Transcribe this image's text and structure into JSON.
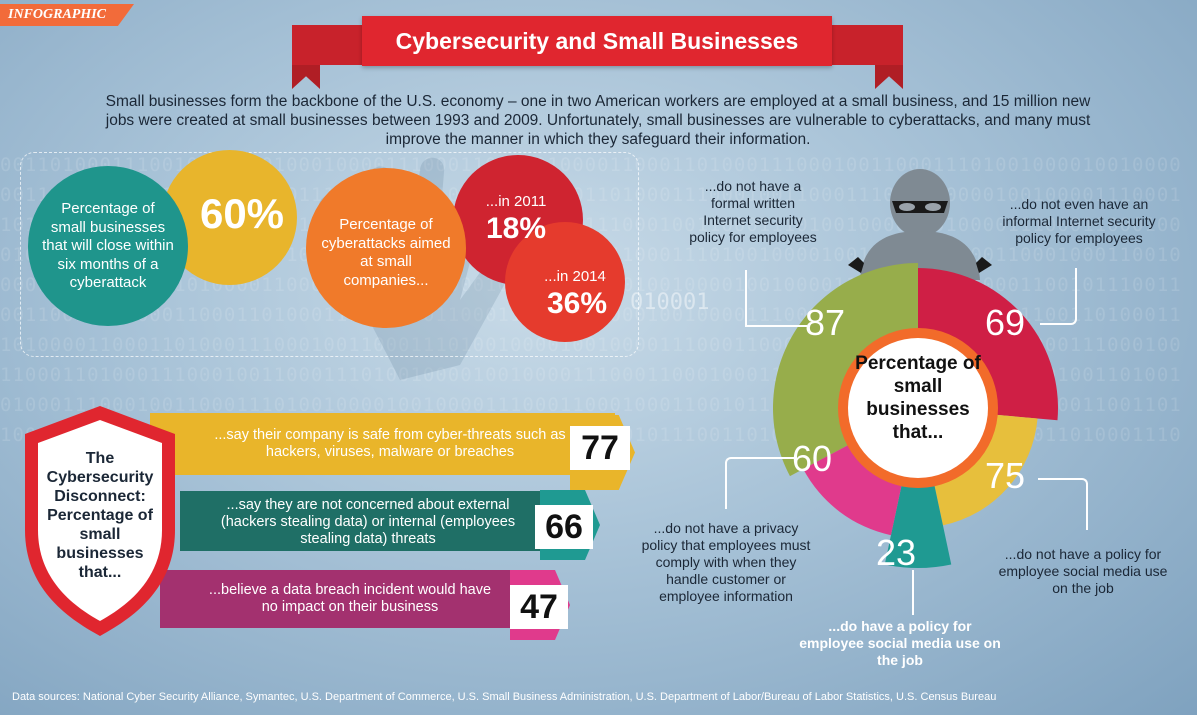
{
  "badge": "INFOGRAPHIC",
  "title": "Cybersecurity and Small Businesses",
  "intro": "Small businesses form the backbone of the U.S. economy – one in two American workers are employed at a small business, and 15 million new jobs were created at small businesses between 1993 and 2009. Unfortunately, small businesses are vulnerable to cyberattacks, and many must improve the manner in which they safeguard their information.",
  "binary_text": "0011010001110010100110100010000111000110011010000110001101000111000100110001110100100001001000011100011000100011001011100110100011100010011010011",
  "stat1": {
    "label": "Percentage of small businesses that will close within six months of a cyberattack",
    "value": "60%"
  },
  "stat2": {
    "label": "Percentage of cyberattacks aimed at small companies...",
    "y2011_label": "...in 2011",
    "y2011_value": "18%",
    "y2014_label": "...in 2014",
    "y2014_value": "36%"
  },
  "disconnect": {
    "shield_label": "The Cybersecurity Disconnect: Percentage of small businesses that...",
    "bars": [
      {
        "text": "...say their company is safe from cyber-threats such as hackers, viruses, malware or breaches",
        "value": "77",
        "color": "#e9b52a"
      },
      {
        "text": "...say they are not concerned about external (hackers stealing data) or internal (employees stealing data) threats",
        "value": "66",
        "color": "#1f6f66"
      },
      {
        "text": "...believe a data breach incident would have no impact on their business",
        "value": "47",
        "color": "#a3316f"
      }
    ]
  },
  "donut": {
    "center_label": "Percentage of small businesses that...",
    "segments": [
      {
        "value": "87",
        "label": "...do not have a formal written Internet security policy for employees",
        "color": "#97ad4b"
      },
      {
        "value": "69",
        "label": "...do not even have an informal Internet security policy for employees",
        "color": "#cf1f45"
      },
      {
        "value": "75",
        "label": "...do not have a policy for employee social media use on the job",
        "color": "#e7bf3c"
      },
      {
        "value": "23",
        "label": "...do have a policy for employee social media use on the job",
        "color": "#1f9a92"
      },
      {
        "value": "60",
        "label": "...do not have a privacy policy that employees must comply with when they handle customer or employee information",
        "color": "#e03a8c"
      }
    ]
  },
  "binary_fragment": "010001",
  "sources": "Data sources: National Cyber Security Alliance, Symantec, U.S. Department of Commerce, U.S. Small Business Administration, U.S. Department of Labor/Bureau of Labor Statistics, U.S. Census Bureau"
}
